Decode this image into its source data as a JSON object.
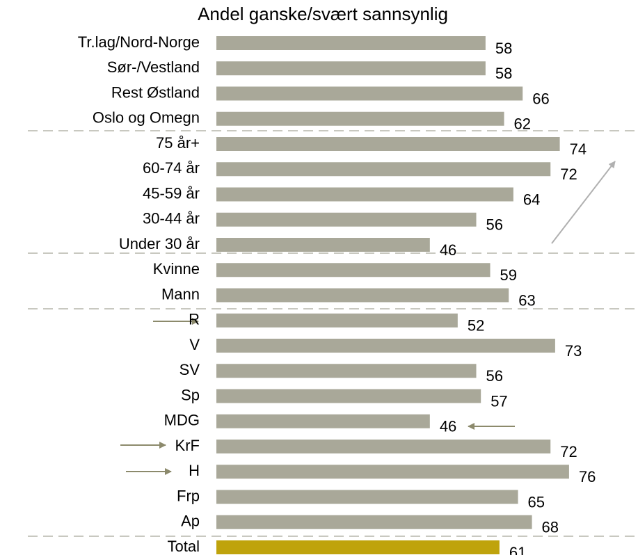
{
  "chart_data": {
    "type": "barh",
    "title": "Andel ganske/svært sannsynlig",
    "categories": [
      "Tr.lag/Nord-Norge",
      "Sør-/Vestland",
      "Rest Østland",
      "Oslo og Omegn",
      "75 år+",
      "60-74 år",
      "45-59 år",
      "30-44 år",
      "Under 30 år",
      "Kvinne",
      "Mann",
      "R",
      "V",
      "SV",
      "Sp",
      "MDG",
      "KrF",
      "H",
      "Frp",
      "Ap",
      "Total"
    ],
    "values": [
      58,
      58,
      66,
      62,
      74,
      72,
      64,
      56,
      46,
      59,
      63,
      52,
      73,
      56,
      57,
      46,
      72,
      76,
      65,
      68,
      61
    ],
    "colors": [
      "#a9a899",
      "#a9a899",
      "#a9a899",
      "#a9a899",
      "#a9a899",
      "#a9a899",
      "#a9a899",
      "#a9a899",
      "#a9a899",
      "#a9a899",
      "#a9a899",
      "#a9a899",
      "#a9a899",
      "#a9a899",
      "#a9a899",
      "#a9a899",
      "#a9a899",
      "#a9a899",
      "#a9a899",
      "#a9a899",
      "#bfa30c"
    ]
  }
}
